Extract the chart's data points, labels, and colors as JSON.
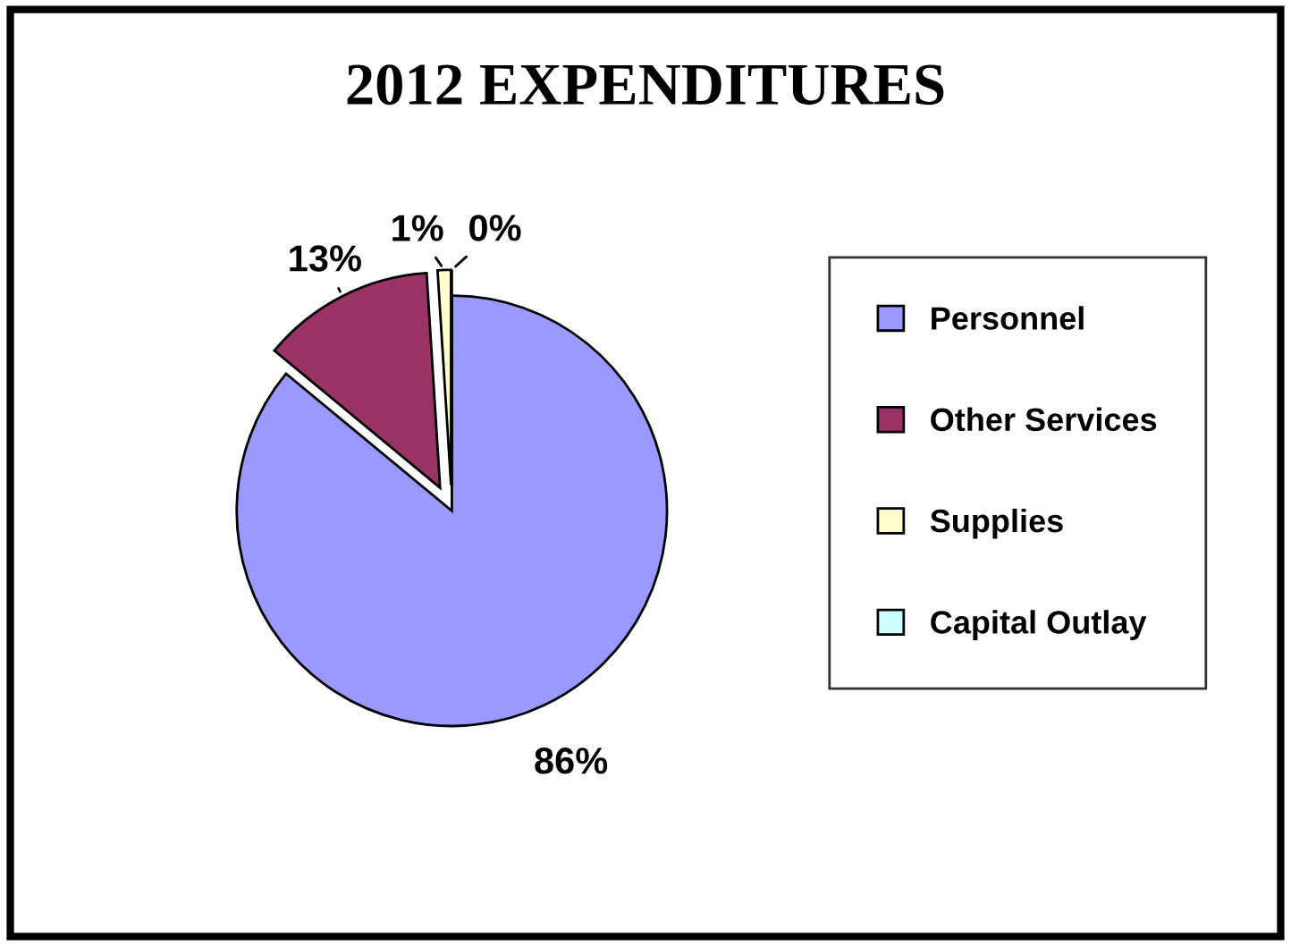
{
  "chart_data": {
    "type": "pie",
    "title": "2012 EXPENDITURES",
    "categories": [
      "Personnel",
      "Other Services",
      "Supplies",
      "Capital Outlay"
    ],
    "values": [
      86,
      13,
      1,
      0
    ],
    "colors": [
      "#9999ff",
      "#993366",
      "#ffffcc",
      "#ccffff"
    ],
    "value_labels": [
      "86%",
      "13%",
      "1%",
      "0%"
    ],
    "legend": "right"
  }
}
